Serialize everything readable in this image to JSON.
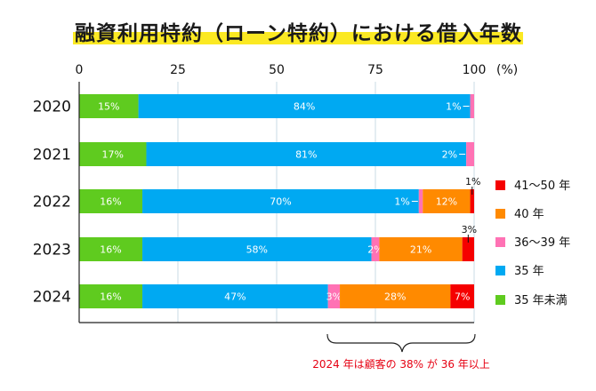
{
  "chart_data": {
    "type": "bar",
    "orientation": "horizontal",
    "stacked": true,
    "title": "融資利用特約（ローン特約）における借入年数",
    "xlabel": "",
    "ylabel": "",
    "xlim": [
      0,
      100
    ],
    "x_ticks": [
      "0",
      "25",
      "50",
      "75",
      "100"
    ],
    "unit_label": "(%)",
    "grid": true,
    "legend_position": "right",
    "categories": [
      "2020",
      "2021",
      "2022",
      "2023",
      "2024"
    ],
    "series": [
      {
        "name": "35 年未満",
        "color": "#5fcb1f",
        "values": [
          15,
          17,
          16,
          16,
          16
        ]
      },
      {
        "name": "35 年",
        "color": "#00a9f2",
        "values": [
          84,
          81,
          70,
          58,
          47
        ]
      },
      {
        "name": "36～39 年",
        "color": "#ff72b4",
        "values": [
          1,
          2,
          1,
          2,
          3
        ]
      },
      {
        "name": "40 年",
        "color": "#ff8a00",
        "values": [
          0,
          0,
          12,
          21,
          28
        ]
      },
      {
        "name": "41～50 年",
        "color": "#f50000",
        "values": [
          0,
          0,
          1,
          3,
          7
        ]
      }
    ],
    "legend_order": [
      "41～50 年",
      "40 年",
      "36～39 年",
      "35 年",
      "35 年未満"
    ],
    "annotation": "2024 年は顧客の 38% が 36 年以上"
  }
}
